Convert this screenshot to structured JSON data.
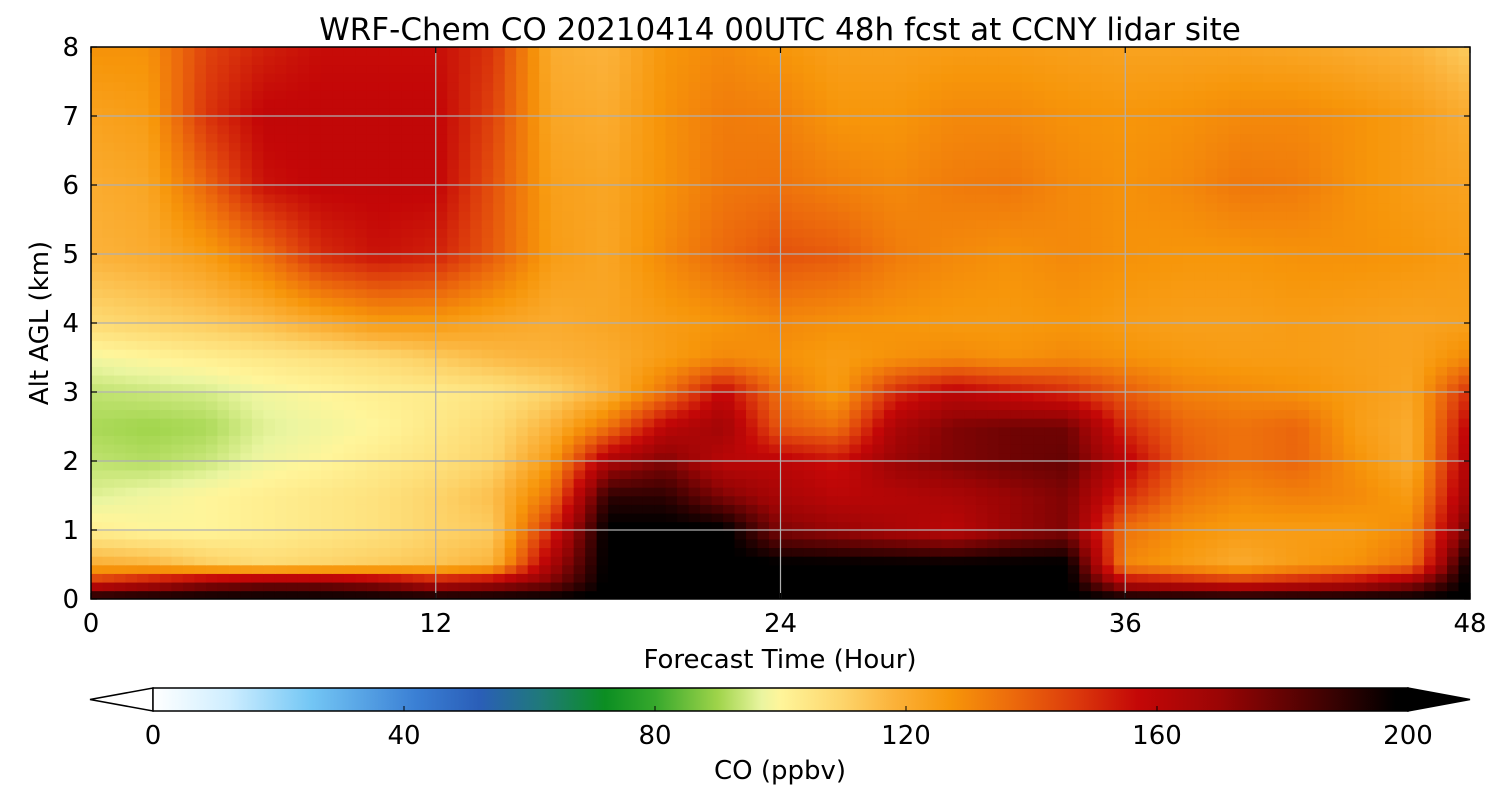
{
  "chart_data": {
    "type": "heatmap",
    "title": "WRF-Chem CO  20210414 00UTC 48h fcst at CCNY lidar site",
    "xlabel": "Forecast Time (Hour)",
    "ylabel": "Alt AGL (km)",
    "xlim": [
      0,
      48
    ],
    "ylim": [
      0,
      8
    ],
    "xticks": [
      0,
      12,
      24,
      36,
      48
    ],
    "yticks": [
      0,
      1,
      2,
      3,
      4,
      5,
      6,
      7,
      8
    ],
    "grid": true,
    "colorbar": {
      "label": "CO  (ppbv)",
      "orientation": "horizontal",
      "range": [
        0,
        200
      ],
      "ticks": [
        0,
        40,
        80,
        120,
        160,
        200
      ],
      "extend": "both",
      "stops": [
        {
          "v": 0,
          "c": "#ffffff"
        },
        {
          "v": 12,
          "c": "#cfeeff"
        },
        {
          "v": 25,
          "c": "#74c7f5"
        },
        {
          "v": 42,
          "c": "#3a7fd4"
        },
        {
          "v": 52,
          "c": "#2a5eb8"
        },
        {
          "v": 62,
          "c": "#1f7a78"
        },
        {
          "v": 72,
          "c": "#0b8e22"
        },
        {
          "v": 80,
          "c": "#36a82c"
        },
        {
          "v": 90,
          "c": "#9fd44a"
        },
        {
          "v": 97,
          "c": "#eaf5a0"
        },
        {
          "v": 100,
          "c": "#fff59a"
        },
        {
          "v": 110,
          "c": "#fdd46a"
        },
        {
          "v": 118,
          "c": "#fbb23a"
        },
        {
          "v": 127,
          "c": "#f7960a"
        },
        {
          "v": 137,
          "c": "#ec6a0c"
        },
        {
          "v": 147,
          "c": "#dc3a0c"
        },
        {
          "v": 157,
          "c": "#c40707"
        },
        {
          "v": 170,
          "c": "#9a0505"
        },
        {
          "v": 185,
          "c": "#4a0202"
        },
        {
          "v": 198,
          "c": "#000000"
        }
      ]
    },
    "grid_x": [
      0,
      2,
      4,
      6,
      8,
      10,
      12,
      14,
      16,
      18,
      20,
      22,
      24,
      26,
      28,
      30,
      32,
      34,
      36,
      38,
      40,
      42,
      44,
      46,
      48
    ],
    "grid_y": [
      0,
      0.25,
      0.5,
      1,
      1.5,
      2,
      2.5,
      3,
      3.5,
      4,
      5,
      6,
      7,
      8
    ],
    "values": [
      [
        200,
        200,
        200,
        200,
        200,
        200,
        200,
        200,
        200,
        200,
        200,
        200,
        200,
        200,
        200,
        200,
        200,
        200,
        200,
        200,
        200,
        200,
        200,
        200,
        200
      ],
      [
        150,
        160,
        170,
        175,
        175,
        170,
        160,
        165,
        175,
        200,
        200,
        200,
        200,
        200,
        200,
        200,
        200,
        200,
        160,
        155,
        150,
        155,
        160,
        170,
        200
      ],
      [
        120,
        118,
        112,
        108,
        110,
        112,
        114,
        118,
        165,
        200,
        200,
        200,
        200,
        200,
        200,
        200,
        200,
        200,
        130,
        125,
        120,
        125,
        128,
        135,
        200
      ],
      [
        102,
        100,
        100,
        102,
        104,
        106,
        110,
        112,
        150,
        200,
        200,
        200,
        175,
        170,
        165,
        160,
        170,
        175,
        135,
        128,
        125,
        125,
        125,
        130,
        180
      ],
      [
        96,
        98,
        100,
        102,
        104,
        106,
        110,
        115,
        135,
        190,
        190,
        175,
        165,
        160,
        162,
        165,
        170,
        175,
        150,
        135,
        130,
        132,
        130,
        125,
        170
      ],
      [
        93,
        92,
        94,
        98,
        100,
        103,
        106,
        110,
        125,
        165,
        175,
        160,
        160,
        155,
        170,
        175,
        178,
        180,
        160,
        140,
        135,
        138,
        128,
        120,
        165
      ],
      [
        91,
        90,
        91,
        96,
        98,
        100,
        104,
        108,
        118,
        135,
        160,
        168,
        140,
        135,
        165,
        175,
        178,
        178,
        150,
        138,
        135,
        138,
        125,
        120,
        160
      ],
      [
        93,
        94,
        95,
        98,
        100,
        102,
        103,
        105,
        110,
        118,
        135,
        158,
        135,
        125,
        150,
        160,
        155,
        150,
        140,
        132,
        130,
        128,
        125,
        122,
        150
      ],
      [
        98,
        100,
        102,
        104,
        106,
        108,
        112,
        116,
        118,
        120,
        125,
        130,
        128,
        125,
        128,
        130,
        128,
        130,
        128,
        126,
        125,
        125,
        124,
        123,
        130
      ],
      [
        108,
        110,
        112,
        115,
        120,
        125,
        125,
        122,
        120,
        122,
        125,
        127,
        130,
        128,
        127,
        126,
        126,
        127,
        125,
        124,
        124,
        125,
        124,
        123,
        124
      ],
      [
        118,
        120,
        125,
        135,
        150,
        155,
        152,
        140,
        125,
        122,
        130,
        137,
        142,
        140,
        133,
        130,
        128,
        130,
        128,
        127,
        127,
        128,
        128,
        127,
        125
      ],
      [
        120,
        122,
        138,
        155,
        158,
        158,
        158,
        142,
        124,
        122,
        128,
        134,
        135,
        132,
        130,
        133,
        134,
        130,
        128,
        130,
        134,
        133,
        128,
        125,
        123
      ],
      [
        123,
        125,
        148,
        158,
        158,
        158,
        158,
        145,
        122,
        120,
        128,
        133,
        132,
        127,
        127,
        130,
        130,
        128,
        127,
        128,
        130,
        130,
        128,
        125,
        120
      ],
      [
        128,
        128,
        145,
        152,
        156,
        156,
        156,
        148,
        120,
        118,
        127,
        130,
        127,
        124,
        124,
        125,
        125,
        124,
        123,
        123,
        123,
        122,
        120,
        118,
        112
      ]
    ]
  }
}
